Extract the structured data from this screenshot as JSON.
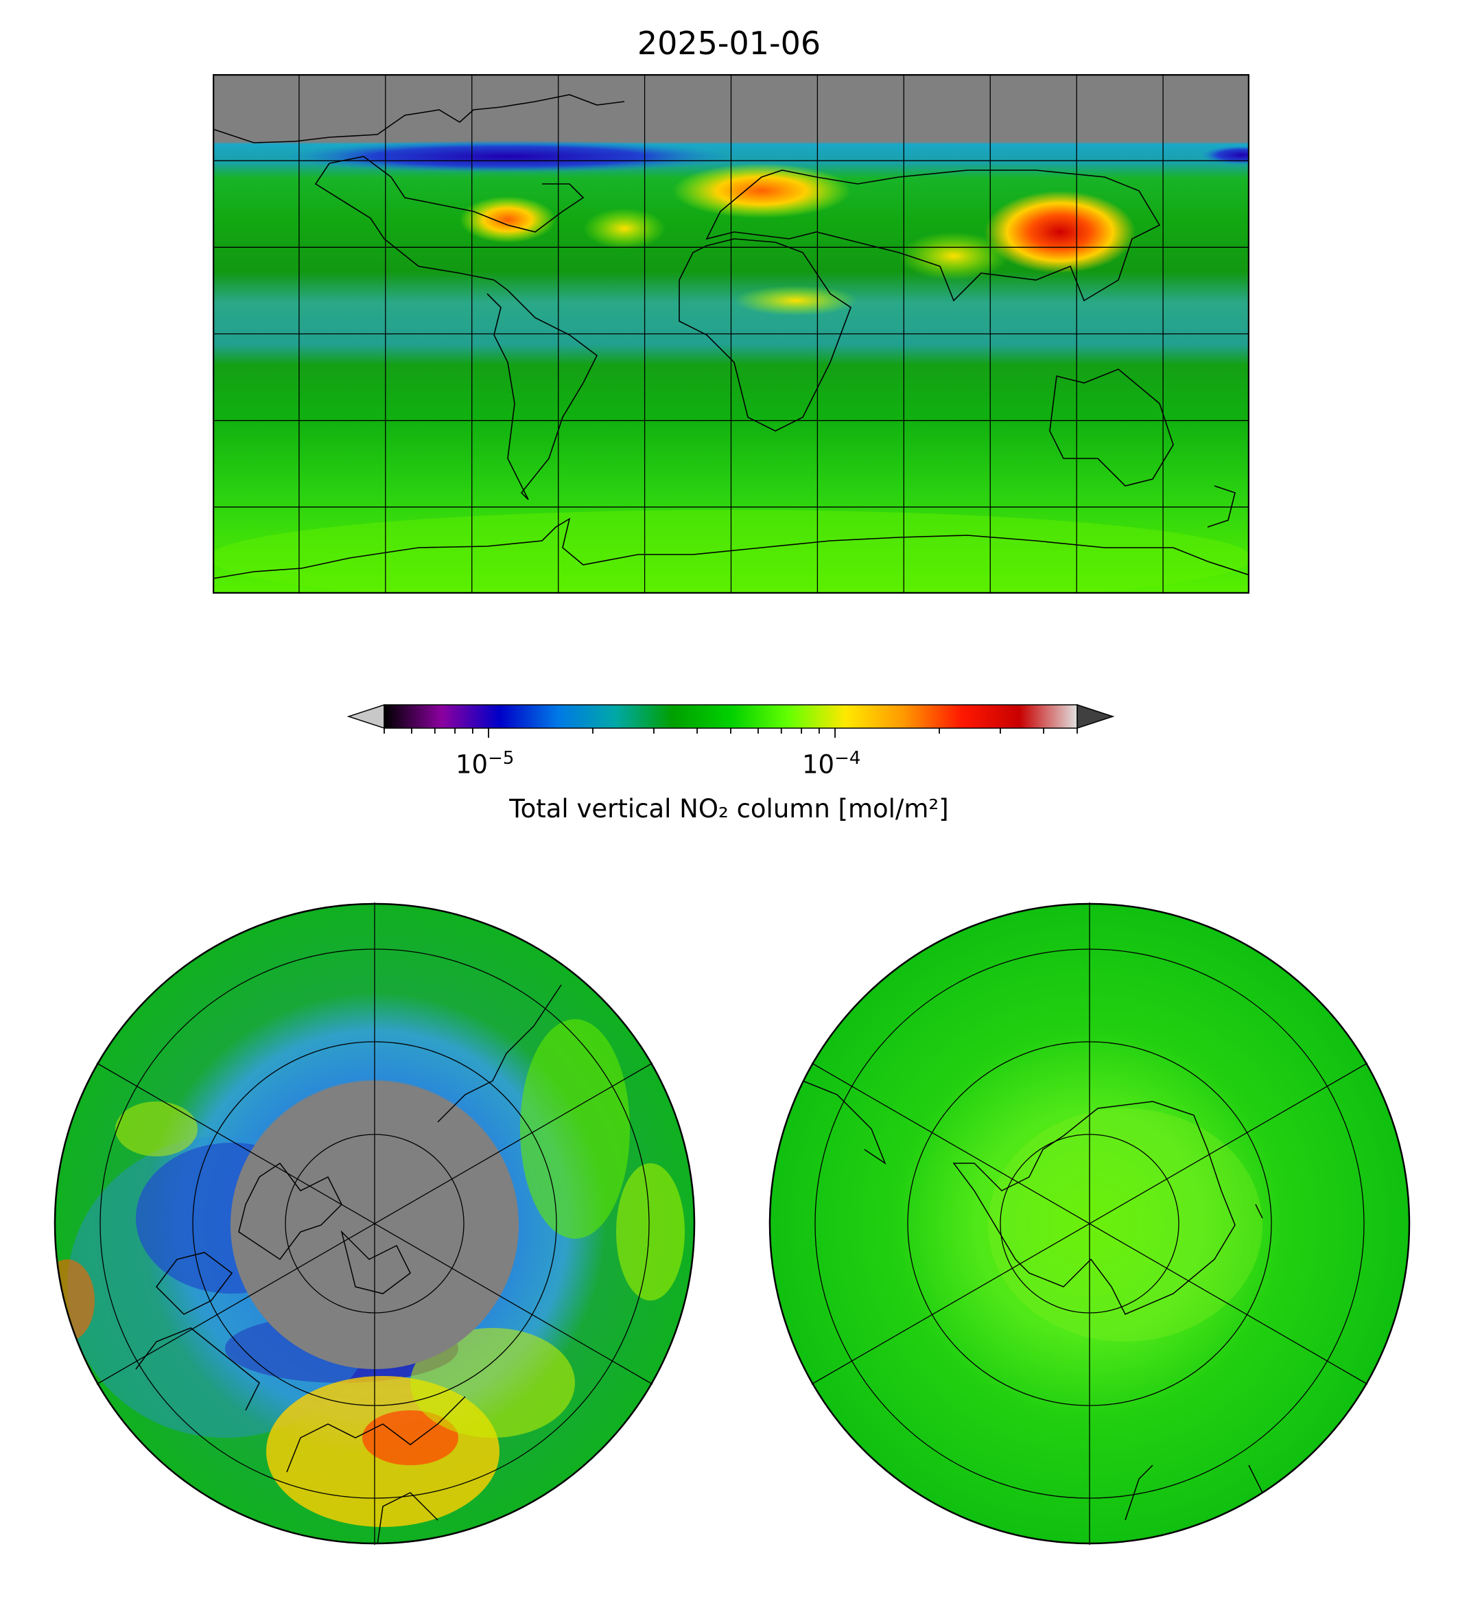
{
  "title": "2025-01-06",
  "colorbar": {
    "label": "Total vertical NO₂ column [mol/m²]",
    "scale": "log",
    "range": [
      5e-06,
      0.0005
    ],
    "extend": "both",
    "ticks": [
      {
        "value": 1e-05,
        "base": "10",
        "exp": "−5"
      },
      {
        "value": 0.0001,
        "base": "10",
        "exp": "−4"
      }
    ],
    "colors": [
      "#000000",
      "#8b00a0",
      "#0000c8",
      "#0078e6",
      "#00a8a8",
      "#00a000",
      "#00d000",
      "#64ff00",
      "#ffe800",
      "#ff9800",
      "#ff1800",
      "#c80000",
      "#e0e0e0"
    ],
    "under_color": "#c8c8c8",
    "over_color": "#404040"
  },
  "maps": {
    "global": {
      "projection": "plate-carree",
      "no_data_color": "#808080"
    },
    "north": {
      "projection": "north-polar-stereographic"
    },
    "south": {
      "projection": "south-polar-stereographic"
    }
  }
}
